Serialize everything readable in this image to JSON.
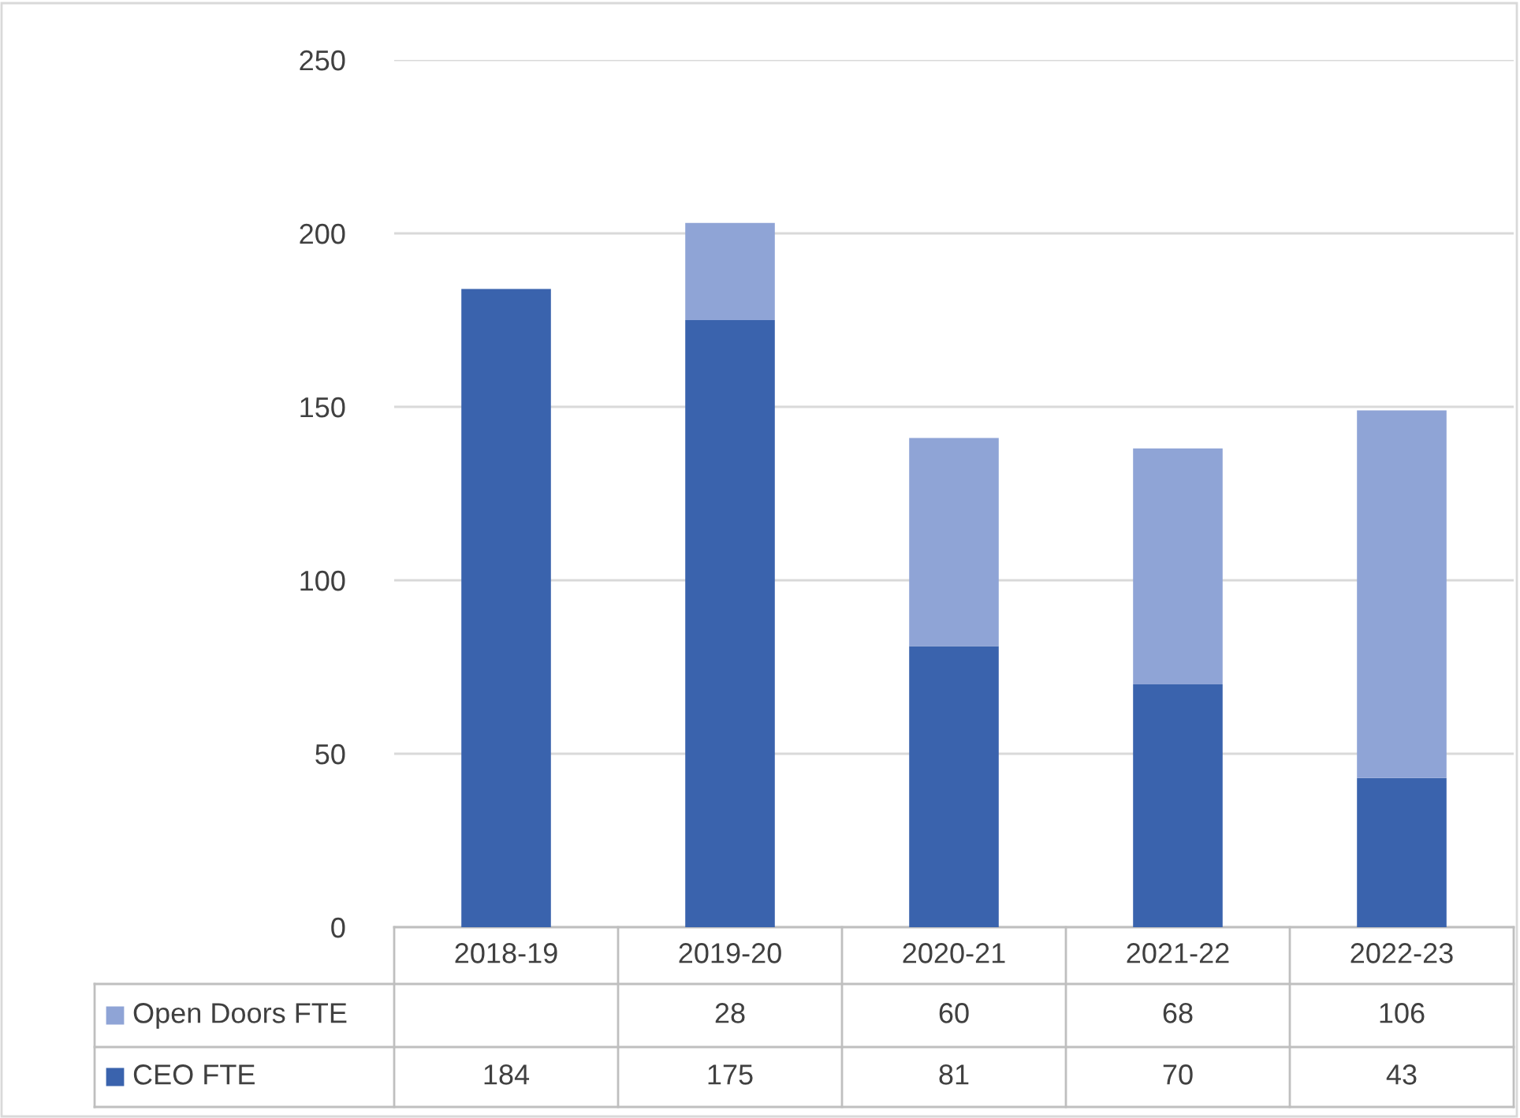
{
  "chart_data": {
    "type": "bar",
    "stacked": true,
    "categories": [
      "2018-19",
      "2019-20",
      "2020-21",
      "2021-22",
      "2022-23"
    ],
    "series": [
      {
        "name": "CEO FTE",
        "color": "#3a63ad",
        "values": [
          184,
          175,
          81,
          70,
          43
        ]
      },
      {
        "name": "Open Doors FTE",
        "color": "#8fa4d6",
        "values": [
          null,
          28,
          60,
          68,
          106
        ]
      }
    ],
    "ylim": [
      0,
      250
    ],
    "yticks": [
      0,
      50,
      100,
      150,
      200,
      250
    ],
    "grid": "y",
    "legend": "bottom",
    "data_labels": true
  }
}
